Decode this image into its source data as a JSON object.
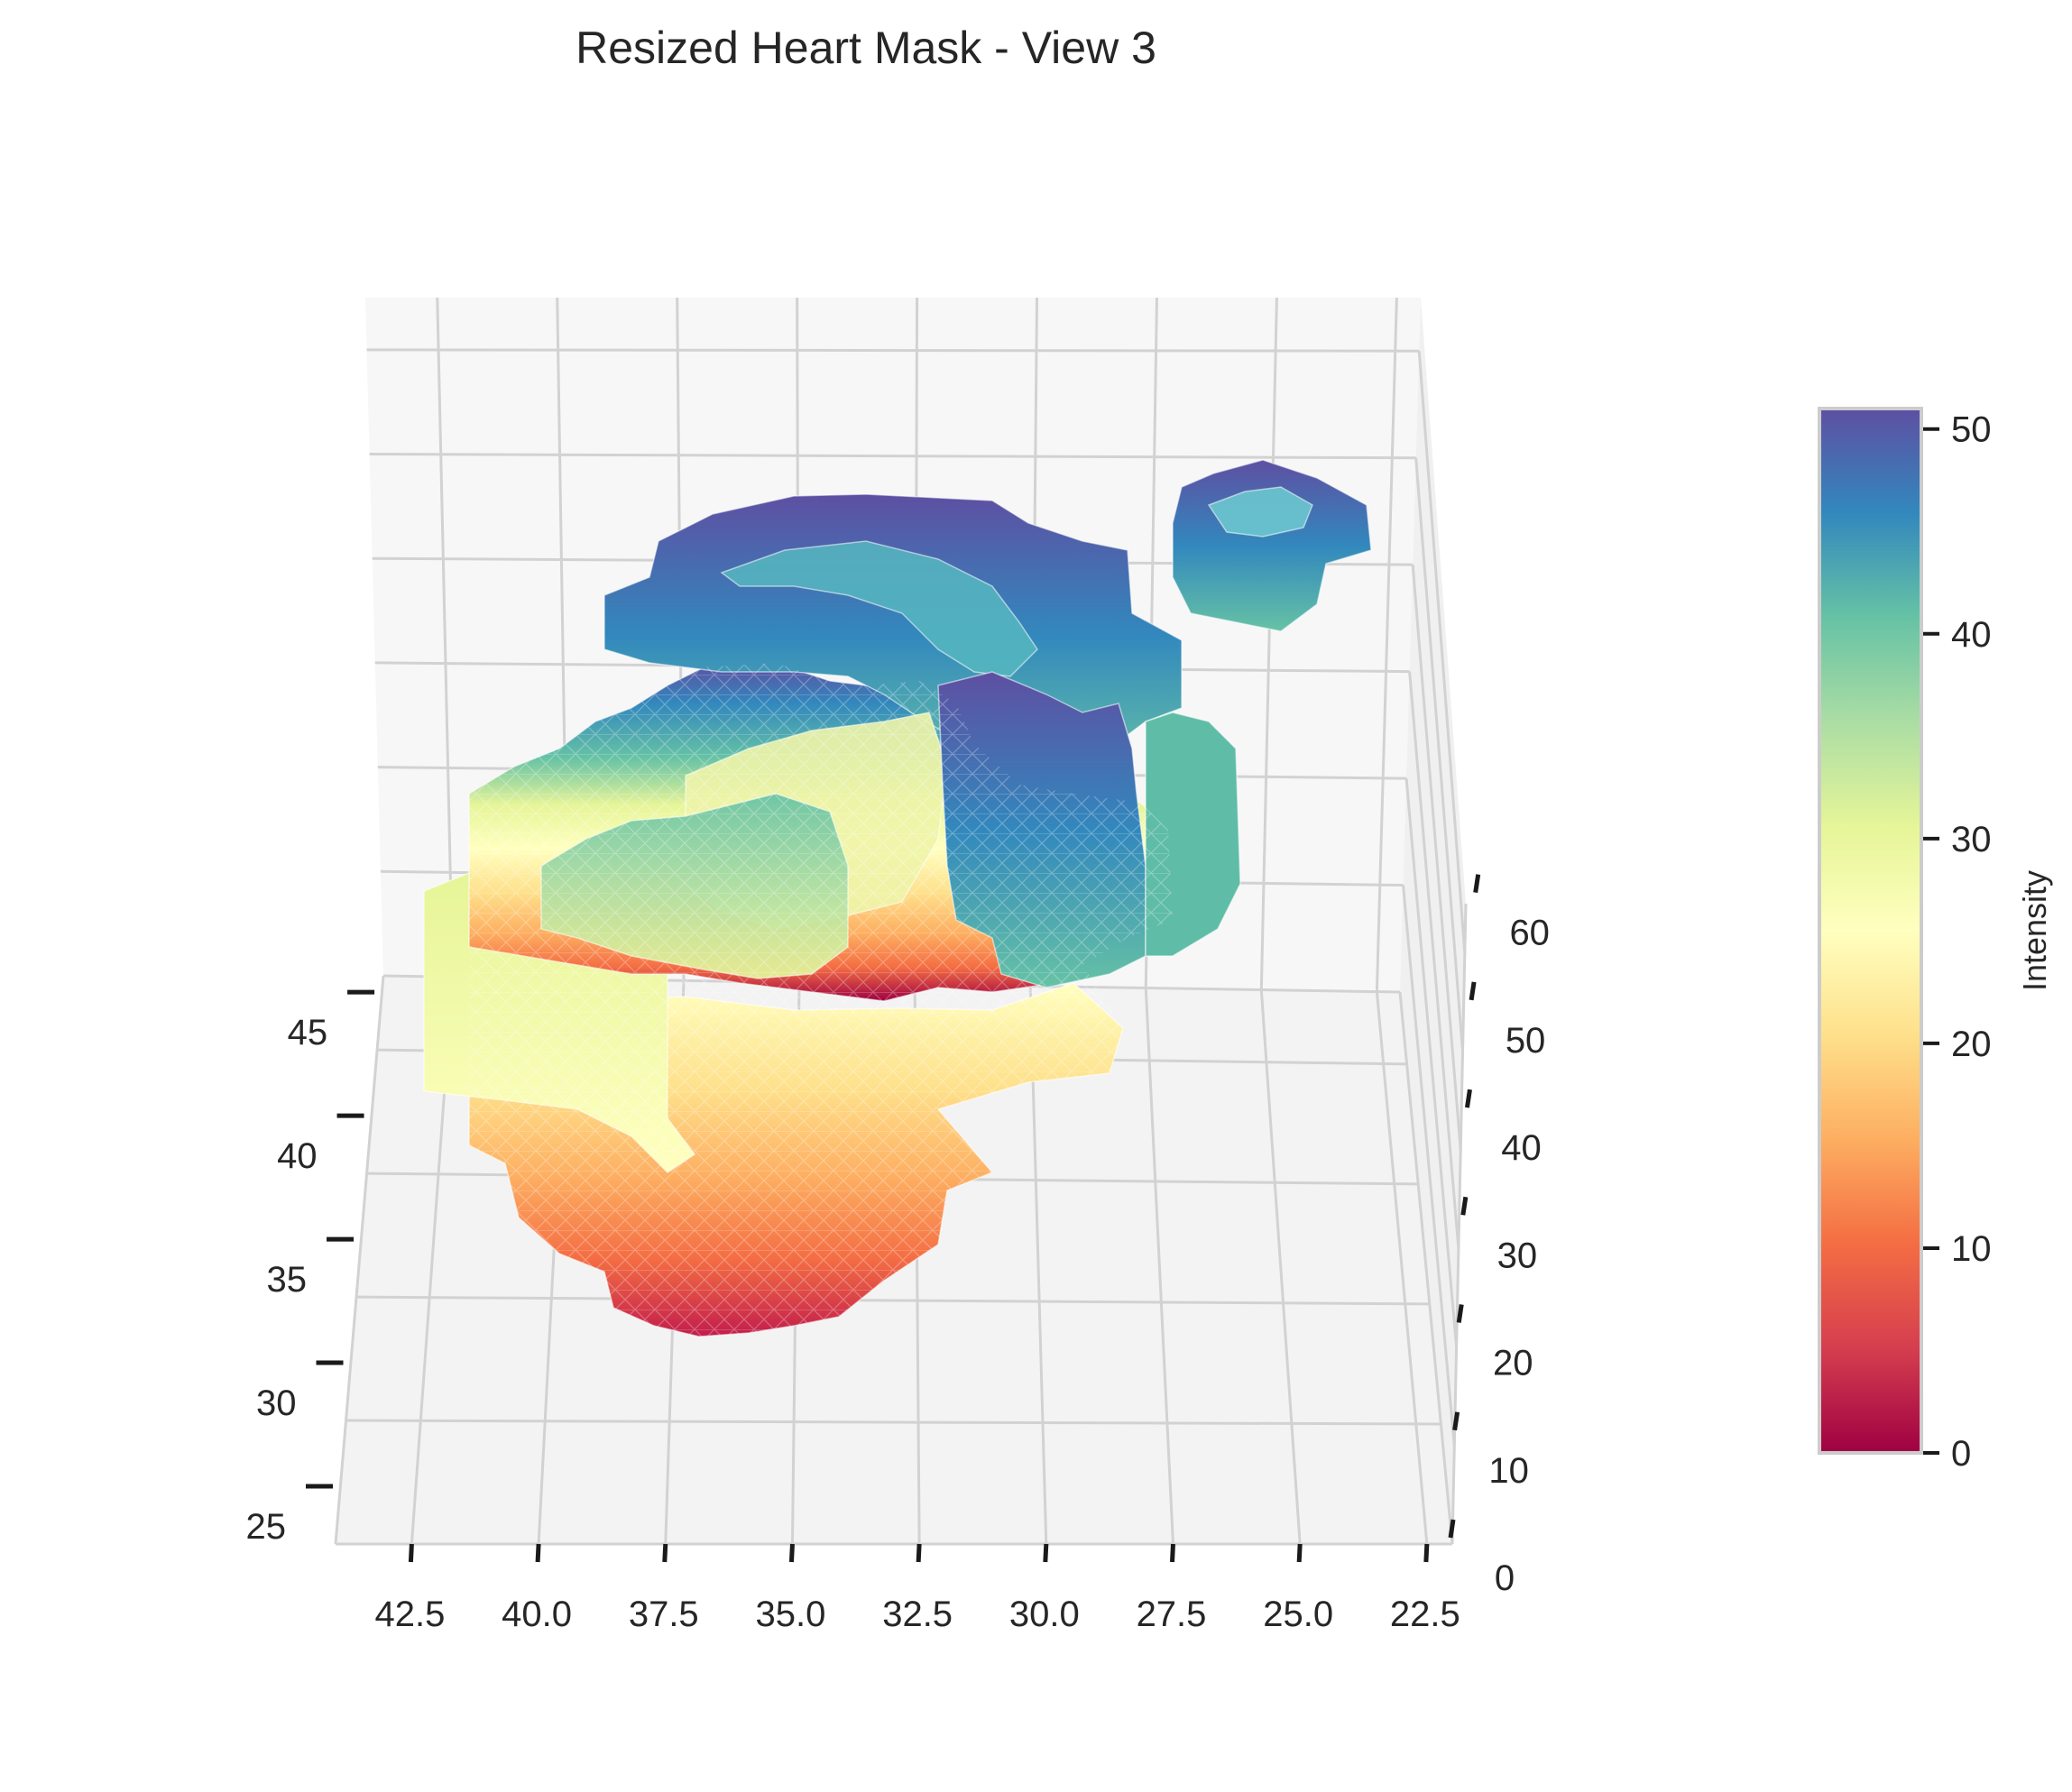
{
  "chart_data": {
    "type": "surface-3d",
    "title": "Resized Heart Mask - View 3",
    "x_axis": {
      "label": "",
      "ticks": [
        "42.5",
        "40.0",
        "37.5",
        "35.0",
        "32.5",
        "30.0",
        "27.5",
        "25.0",
        "22.5"
      ],
      "range": [
        22,
        44
      ]
    },
    "y_axis": {
      "label": "",
      "ticks": [
        "25",
        "30",
        "35",
        "40",
        "45"
      ],
      "range": [
        25,
        48
      ]
    },
    "z_axis": {
      "label": "",
      "ticks": [
        "0",
        "10",
        "20",
        "30",
        "40",
        "50",
        "60"
      ],
      "range": [
        0,
        65
      ]
    },
    "colorbar": {
      "label": "Intensity",
      "ticks": [
        "0",
        "10",
        "20",
        "30",
        "40",
        "50"
      ],
      "range": [
        0,
        51
      ],
      "colormap": "Spectral"
    },
    "grid": true,
    "colors": {
      "pane": "#f3f3f3",
      "grid": "#cfcfcf",
      "text": "#262626",
      "tick": "#1a1a1a"
    }
  }
}
